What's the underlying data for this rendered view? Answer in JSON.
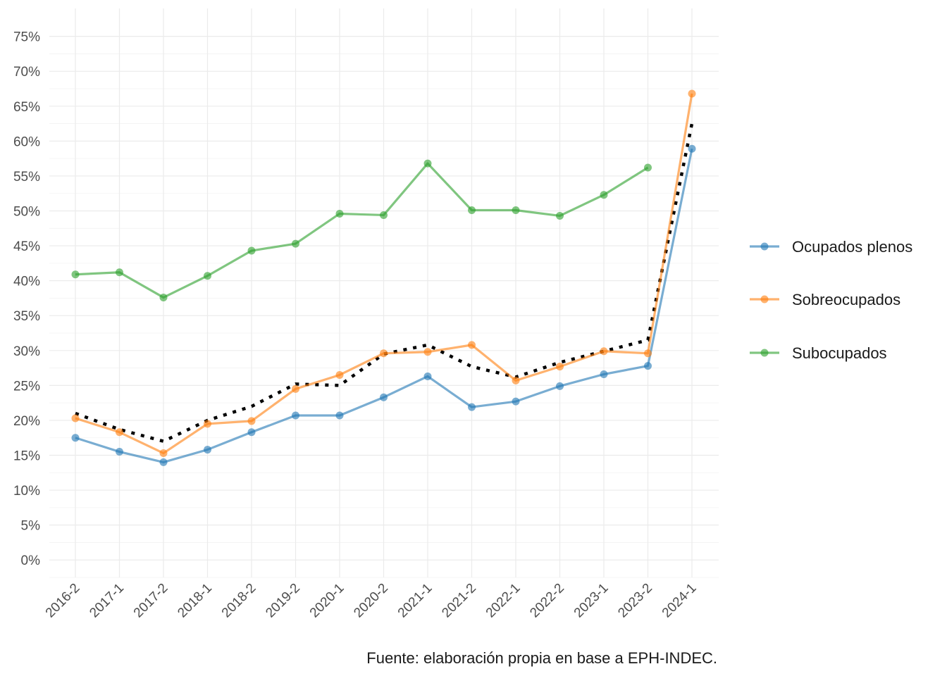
{
  "chart_data": {
    "type": "line",
    "caption": "Fuente: elaboración propia en base a EPH-INDEC.",
    "categories": [
      "2016-2",
      "2017-1",
      "2017-2",
      "2018-1",
      "2018-2",
      "2019-2",
      "2020-1",
      "2020-2",
      "2021-1",
      "2021-2",
      "2022-1",
      "2022-2",
      "2023-1",
      "2023-2",
      "2024-1"
    ],
    "y_ticks": [
      0,
      5,
      10,
      15,
      20,
      25,
      30,
      35,
      40,
      45,
      50,
      55,
      60,
      65,
      70,
      75
    ],
    "y_tick_format": "%",
    "ylim": [
      -2.5,
      79
    ],
    "grid": true,
    "legend_position": "right",
    "series": [
      {
        "name": "Ocupados plenos",
        "color": "#1f77b4",
        "values": [
          17.5,
          15.5,
          14.0,
          15.8,
          18.3,
          20.7,
          20.7,
          23.3,
          26.3,
          21.9,
          22.7,
          24.9,
          26.6,
          27.8,
          58.9
        ]
      },
      {
        "name": "Sobreocupados",
        "color": "#ff7f0e",
        "values": [
          20.3,
          18.3,
          15.3,
          19.5,
          19.9,
          24.5,
          26.5,
          29.6,
          29.8,
          30.8,
          25.7,
          27.7,
          29.9,
          29.6,
          66.8
        ]
      },
      {
        "name": "Subocupados",
        "color": "#2ca02c",
        "values": [
          40.9,
          41.2,
          37.6,
          40.7,
          44.3,
          45.3,
          49.6,
          49.4,
          56.8,
          50.1,
          50.1,
          49.3,
          52.3,
          56.2,
          null
        ]
      }
    ],
    "total_line": {
      "style": "dotted",
      "color": "#000000",
      "values": [
        21.0,
        18.7,
        17.0,
        20.0,
        22.0,
        25.2,
        25.0,
        29.5,
        30.8,
        27.7,
        26.2,
        28.3,
        29.9,
        31.5,
        62.5
      ]
    }
  }
}
